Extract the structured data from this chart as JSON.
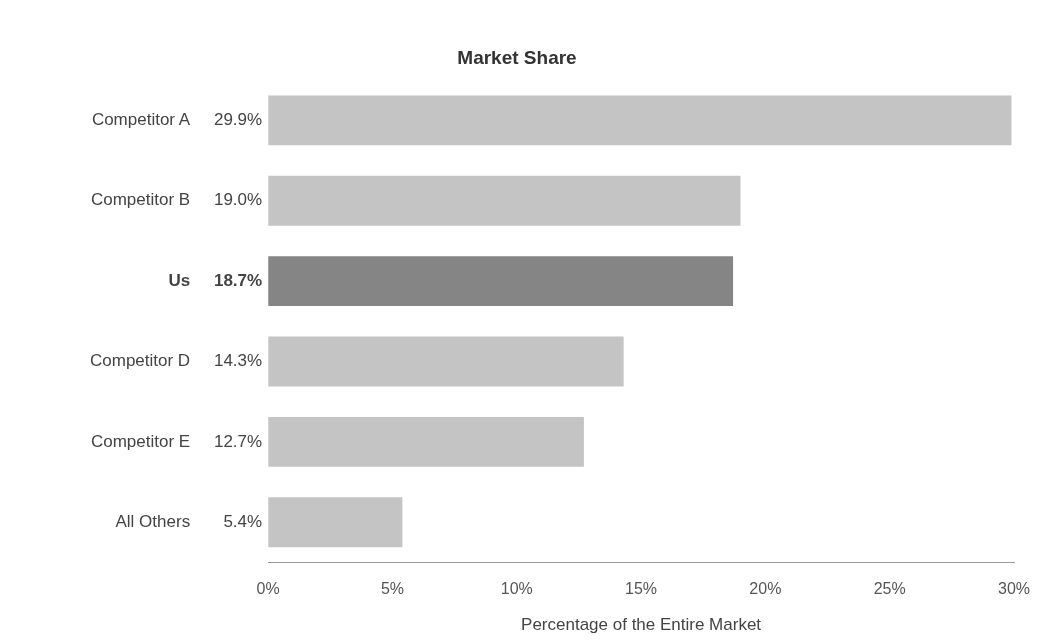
{
  "chart_data": {
    "type": "bar",
    "orientation": "horizontal",
    "title": "Market Share",
    "xlabel": "Percentage of the Entire Market",
    "categories": [
      "Competitor A",
      "Competitor B",
      "Us",
      "Competitor D",
      "Competitor E",
      "All Others"
    ],
    "values": [
      29.9,
      19.0,
      18.7,
      14.3,
      12.7,
      5.4
    ],
    "value_labels": [
      "29.9%",
      "19.0%",
      "18.7%",
      "14.3%",
      "12.7%",
      "5.4%"
    ],
    "colors": [
      "#c4c4c4",
      "#c4c4c4",
      "#858585",
      "#c4c4c4",
      "#c4c4c4",
      "#c4c4c4"
    ],
    "xlim": [
      0,
      30
    ],
    "xticks": [
      {
        "value": 0,
        "label": "0%"
      },
      {
        "value": 5,
        "label": "5%"
      },
      {
        "value": 10,
        "label": "10%"
      },
      {
        "value": 15,
        "label": "15%"
      },
      {
        "value": 20,
        "label": "20%"
      },
      {
        "value": 25,
        "label": "25%"
      },
      {
        "value": 30,
        "label": "30%"
      }
    ],
    "grid": false,
    "legend": false
  }
}
